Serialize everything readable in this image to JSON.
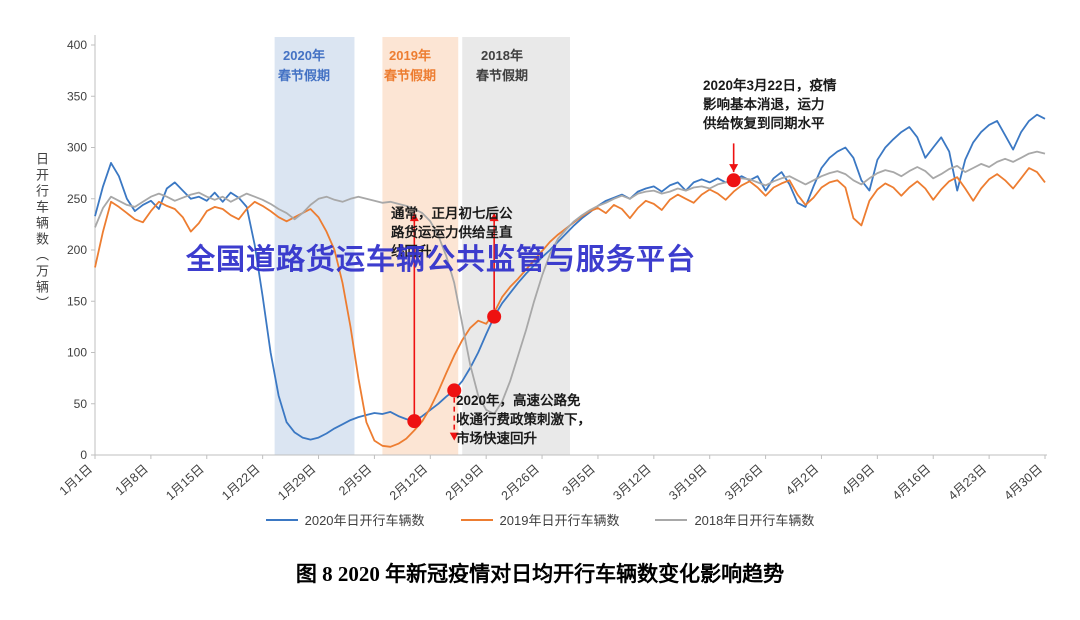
{
  "watermark": {
    "text": "全国道路货运车辆公共监管与服务平台",
    "color": "#3333cc"
  },
  "caption": "图 8 2020 年新冠疫情对日均开行车辆数变化影响趋势",
  "chart_data": {
    "type": "line",
    "ylabel": "日开行车辆数（万辆）",
    "ylim": [
      0,
      400
    ],
    "yticks": [
      0,
      50,
      100,
      150,
      200,
      250,
      300,
      350,
      400
    ],
    "x_tick_labels": [
      "1月1日",
      "1月8日",
      "1月15日",
      "1月22日",
      "1月29日",
      "2月5日",
      "2月12日",
      "2月19日",
      "2月26日",
      "3月5日",
      "3月12日",
      "3月19日",
      "3月26日",
      "4月2日",
      "4月9日",
      "4月16日",
      "4月23日",
      "4月30日"
    ],
    "x_tick_days": [
      0,
      7,
      14,
      21,
      28,
      35,
      42,
      49,
      56,
      63,
      70,
      77,
      84,
      91,
      98,
      105,
      112,
      119
    ],
    "bands": [
      {
        "year": "2020",
        "label": "2020年\n春节假期",
        "start": 22.5,
        "end": 32.5,
        "fill": "#dbe5f2",
        "label_color": "#4472c4"
      },
      {
        "year": "2019",
        "label": "2019年\n春节假期",
        "start": 36,
        "end": 45.5,
        "fill": "#fce5d4",
        "label_color": "#ed7d31"
      },
      {
        "year": "2018",
        "label": "2018年\n春节假期",
        "start": 46,
        "end": 59.5,
        "fill": "#e9e9e9",
        "label_color": "#404040"
      }
    ],
    "series": [
      {
        "id": "2020",
        "name": "2020年日开行车辆数",
        "color": "#3b78c3",
        "values": [
          233,
          262,
          285,
          272,
          250,
          238,
          244,
          248,
          240,
          260,
          266,
          258,
          250,
          252,
          248,
          256,
          247,
          256,
          251,
          242,
          205,
          155,
          100,
          58,
          32,
          22,
          17,
          15,
          17,
          21,
          26,
          30,
          34,
          37,
          39,
          41,
          40,
          42,
          38,
          35,
          33,
          38,
          44,
          50,
          57,
          63,
          72,
          85,
          100,
          118,
          135,
          148,
          158,
          168,
          177,
          185,
          193,
          200,
          208,
          216,
          224,
          231,
          237,
          243,
          248,
          251,
          254,
          250,
          257,
          260,
          262,
          257,
          263,
          266,
          258,
          266,
          269,
          266,
          270,
          266,
          268,
          272,
          268,
          272,
          258,
          270,
          276,
          264,
          246,
          242,
          262,
          280,
          290,
          296,
          300,
          290,
          268,
          258,
          288,
          300,
          308,
          315,
          320,
          310,
          290,
          300,
          310,
          296,
          258,
          288,
          305,
          315,
          322,
          326,
          312,
          298,
          315,
          326,
          332,
          328
        ]
      },
      {
        "id": "2019",
        "name": "2019年日开行车辆数",
        "color": "#ed7d31",
        "values": [
          183,
          218,
          247,
          242,
          236,
          230,
          227,
          238,
          247,
          243,
          240,
          232,
          218,
          226,
          238,
          242,
          240,
          234,
          230,
          240,
          247,
          243,
          238,
          232,
          228,
          232,
          236,
          240,
          232,
          218,
          200,
          168,
          125,
          75,
          32,
          14,
          9,
          8,
          11,
          16,
          24,
          33,
          46,
          62,
          80,
          97,
          112,
          124,
          131,
          128,
          139,
          154,
          164,
          172,
          181,
          190,
          199,
          208,
          215,
          221,
          227,
          233,
          238,
          241,
          236,
          244,
          240,
          231,
          241,
          248,
          245,
          239,
          249,
          254,
          250,
          246,
          254,
          259,
          255,
          249,
          257,
          263,
          267,
          261,
          253,
          261,
          265,
          268,
          254,
          244,
          251,
          261,
          266,
          268,
          261,
          231,
          224,
          248,
          259,
          265,
          261,
          253,
          261,
          267,
          260,
          249,
          259,
          267,
          271,
          260,
          248,
          260,
          269,
          274,
          268,
          260,
          270,
          280,
          276,
          266
        ]
      },
      {
        "id": "2018",
        "name": "2018年日开行车辆数",
        "color": "#a8a8a8",
        "values": [
          222,
          241,
          252,
          248,
          244,
          242,
          247,
          252,
          255,
          252,
          248,
          251,
          254,
          256,
          252,
          249,
          252,
          247,
          251,
          255,
          252,
          249,
          245,
          240,
          236,
          230,
          236,
          244,
          250,
          252,
          249,
          247,
          250,
          252,
          250,
          248,
          246,
          247,
          245,
          243,
          240,
          236,
          228,
          214,
          194,
          168,
          128,
          88,
          58,
          44,
          40,
          52,
          72,
          97,
          122,
          150,
          175,
          196,
          211,
          220,
          228,
          234,
          239,
          243,
          246,
          250,
          253,
          250,
          255,
          257,
          258,
          255,
          257,
          260,
          258,
          261,
          262,
          260,
          264,
          266,
          268,
          270,
          269,
          266,
          263,
          267,
          270,
          272,
          268,
          264,
          268,
          272,
          275,
          277,
          274,
          268,
          264,
          270,
          275,
          278,
          276,
          272,
          277,
          281,
          277,
          270,
          274,
          279,
          282,
          276,
          280,
          284,
          281,
          286,
          289,
          286,
          290,
          294,
          296,
          294
        ]
      }
    ],
    "marker_color": "#ee1111",
    "markers": [
      {
        "day": 40,
        "value": 33
      },
      {
        "day": 45,
        "value": 63
      },
      {
        "day": 50,
        "value": 135
      },
      {
        "day": 80,
        "value": 268
      }
    ],
    "arrows": [
      {
        "day": 40,
        "v_from": 36,
        "v_to": 236,
        "dashed": false
      },
      {
        "day": 45,
        "v_from": 56,
        "v_to": 14,
        "dashed": true
      },
      {
        "day": 50,
        "v_from": 142,
        "v_to": 236,
        "dashed": false
      },
      {
        "day": 80,
        "v_from": 304,
        "v_to": 276,
        "dashed": false
      }
    ],
    "annotations": [
      "2020年3月22日，疫情\n影响基本消退，运力\n供给恢复到同期水平",
      "通常，正月初七后公\n路货运运力供给呈直\n线回升",
      "2020年，高速公路免\n收通行费政策刺激下，\n市场快速回升"
    ]
  }
}
